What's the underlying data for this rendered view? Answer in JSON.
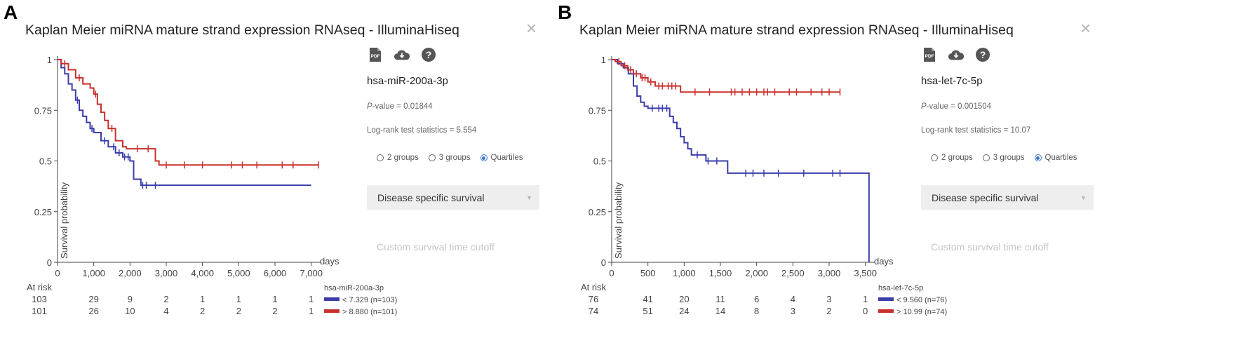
{
  "panels": [
    {
      "letter": "A",
      "title": "Kaplan Meier miRNA mature strand expression RNAseq - IlluminaHiseq",
      "close_icon": "close-icon",
      "toolbar_icons": [
        "pdf-icon",
        "cloud-download-icon",
        "help-icon"
      ],
      "gene": "hsa-miR-200a-3p",
      "pvalue_label": "P",
      "pvalue_text": "-value = 0.01844",
      "logrank_text": "Log-rank test statistics = 5.554",
      "radio_options": [
        {
          "label": "2 groups",
          "selected": false
        },
        {
          "label": "3 groups",
          "selected": false
        },
        {
          "label": "Quartiles",
          "selected": true
        }
      ],
      "dropdown_value": "Disease specific survival",
      "cutoff_label": "Custom survival time cutoff"
    },
    {
      "letter": "B",
      "title": "Kaplan Meier miRNA mature strand expression RNAseq - IlluminaHiseq",
      "close_icon": "close-icon",
      "toolbar_icons": [
        "pdf-icon",
        "cloud-download-icon",
        "help-icon"
      ],
      "gene": "hsa-let-7c-5p",
      "pvalue_label": "P",
      "pvalue_text": "-value = 0.001504",
      "logrank_text": "Log-rank test statistics = 10.07",
      "radio_options": [
        {
          "label": "2 groups",
          "selected": false
        },
        {
          "label": "3 groups",
          "selected": false
        },
        {
          "label": "Quartiles",
          "selected": true
        }
      ],
      "dropdown_value": "Disease specific survival",
      "cutoff_label": "Custom survival time cutoff"
    }
  ],
  "chart_data": [
    {
      "type": "line",
      "title": "Kaplan Meier miRNA mature strand expression RNAseq - IlluminaHiseq",
      "ylabel": "Survival probability",
      "xlabel": "days",
      "xlim": [
        0,
        7200
      ],
      "ylim": [
        0,
        1
      ],
      "xticks": [
        0,
        1000,
        2000,
        3000,
        4000,
        5000,
        6000,
        7000
      ],
      "xtick_labels": [
        "0",
        "1,000",
        "2,000",
        "3,000",
        "4,000",
        "5,000",
        "6,000",
        "7,000"
      ],
      "yticks": [
        0,
        0.25,
        0.5,
        0.75,
        1
      ],
      "ytick_labels": [
        "0",
        "0.25",
        "0.5",
        "0.75",
        "1"
      ],
      "at_risk_label": "At risk",
      "legend_title": "hsa-miR-200a-3p",
      "series": [
        {
          "name": "< 7.329 (n=103)",
          "color": "#3b3dab",
          "at_risk": [
            "103",
            "29",
            "9",
            "2",
            "1",
            "1",
            "1",
            "1"
          ],
          "x": [
            0,
            100,
            200,
            300,
            400,
            500,
            600,
            700,
            800,
            900,
            1000,
            1200,
            1400,
            1600,
            1800,
            2000,
            2100,
            2300,
            7000
          ],
          "y": [
            1,
            0.96,
            0.93,
            0.88,
            0.85,
            0.8,
            0.75,
            0.72,
            0.69,
            0.66,
            0.64,
            0.6,
            0.57,
            0.54,
            0.52,
            0.5,
            0.41,
            0.38,
            0.38
          ],
          "censor_x": [
            550,
            950,
            1300,
            1550,
            1700,
            1850,
            1950,
            2350,
            2450,
            2700
          ]
        },
        {
          "name": "> 8.880 (n=101)",
          "color": "#c9302c",
          "at_risk": [
            "101",
            "26",
            "10",
            "4",
            "2",
            "2",
            "2",
            "1"
          ],
          "x": [
            0,
            100,
            300,
            500,
            700,
            900,
            1000,
            1100,
            1200,
            1300,
            1400,
            1600,
            1800,
            1900,
            2700,
            2800,
            7200
          ],
          "y": [
            1,
            0.98,
            0.95,
            0.91,
            0.88,
            0.86,
            0.83,
            0.78,
            0.74,
            0.7,
            0.66,
            0.6,
            0.57,
            0.56,
            0.5,
            0.48,
            0.48
          ],
          "censor_x": [
            200,
            600,
            1050,
            1500,
            2200,
            2500,
            3000,
            3500,
            4000,
            4800,
            5100,
            5500,
            6200,
            6500,
            7200
          ]
        }
      ]
    },
    {
      "type": "line",
      "title": "Kaplan Meier miRNA mature strand expression RNAseq - IlluminaHiseq",
      "ylabel": "Survival probability",
      "xlabel": "days",
      "xlim": [
        0,
        3600
      ],
      "ylim": [
        0,
        1
      ],
      "xticks": [
        0,
        500,
        1000,
        1500,
        2000,
        2500,
        3000,
        3500
      ],
      "xtick_labels": [
        "0",
        "500",
        "1,000",
        "1,500",
        "2,000",
        "2,500",
        "3,000",
        "3,500"
      ],
      "yticks": [
        0,
        0.25,
        0.5,
        0.75,
        1
      ],
      "ytick_labels": [
        "0",
        "0.25",
        "0.5",
        "0.75",
        "1"
      ],
      "at_risk_label": "At risk",
      "legend_title": "hsa-let-7c-5p",
      "series": [
        {
          "name": "< 9.560 (n=76)",
          "color": "#3b3dab",
          "at_risk": [
            "76",
            "41",
            "20",
            "11",
            "6",
            "4",
            "3",
            "1"
          ],
          "x": [
            0,
            80,
            160,
            230,
            300,
            350,
            400,
            450,
            500,
            800,
            850,
            900,
            950,
            1000,
            1050,
            1100,
            1300,
            1600,
            3550,
            3550
          ],
          "y": [
            1,
            0.98,
            0.96,
            0.93,
            0.87,
            0.82,
            0.79,
            0.77,
            0.76,
            0.72,
            0.69,
            0.66,
            0.62,
            0.59,
            0.56,
            0.53,
            0.5,
            0.44,
            0.44,
            0
          ],
          "censor_x": [
            560,
            650,
            700,
            760,
            1180,
            1330,
            1450,
            1850,
            1950,
            2100,
            2300,
            2650,
            3050,
            3150
          ]
        },
        {
          "name": "> 10.99 (n=74)",
          "color": "#c9302c",
          "at_risk": [
            "74",
            "51",
            "24",
            "14",
            "8",
            "3",
            "2",
            "0"
          ],
          "x": [
            0,
            50,
            130,
            220,
            300,
            400,
            500,
            600,
            700,
            950,
            3150
          ],
          "y": [
            1,
            0.99,
            0.97,
            0.95,
            0.93,
            0.91,
            0.89,
            0.87,
            0.87,
            0.84,
            0.84
          ],
          "censor_x": [
            100,
            180,
            260,
            340,
            420,
            460,
            540,
            650,
            700,
            780,
            830,
            880,
            1150,
            1350,
            1650,
            1700,
            1800,
            1900,
            2000,
            2100,
            2150,
            2250,
            2450,
            2550,
            2750,
            2900,
            3000,
            3150
          ]
        }
      ]
    }
  ]
}
